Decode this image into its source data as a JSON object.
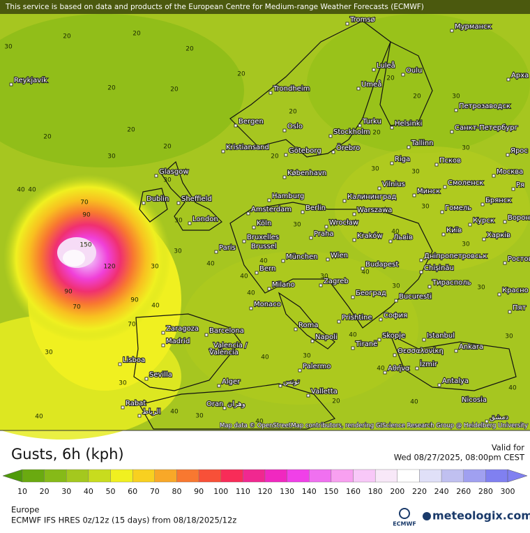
{
  "header": {
    "notice": "This service is based on data and products of the European Centre for Medium-range Weather Forecasts (ECMWF)"
  },
  "map": {
    "attribution": "Map data © OpenStreetMap contributors, rendering GIScience Research Group @ Heidelberg University",
    "cities": [
      "Tromsø",
      "Мурманск",
      "Арха",
      "Reykjavík",
      "Luleå",
      "Oulu",
      "Trondheim",
      "Umeå",
      "Петрозаводск",
      "Bergen",
      "Turku",
      "Helsinki",
      "Санкт-Петербург",
      "Oslo",
      "Stockholm",
      "Kristiansand",
      "Göteborg",
      "Örebro",
      "Tallinn",
      "Ярос",
      "Riga",
      "Псков",
      "Glasgow",
      "København",
      "Москва",
      "Vilnius",
      "Смоленск",
      "Минск",
      "Ря",
      "Hamburg",
      "Калининград",
      "Dublin",
      "Sheffield",
      "Брянск",
      "Amsterdam",
      "Berlin",
      "Warszawa",
      "Гомель",
      "Курск",
      "Ворон",
      "London",
      "Köln",
      "Wrocław",
      "Київ",
      "Харків",
      "Bruxelles",
      "Brussel",
      "Praha",
      "Kraków",
      "Львів",
      "Paris",
      "München",
      "Wien",
      "Дніпропетровськ",
      "Ростов",
      "Budapest",
      "Chișinău",
      "Bern",
      "Тирасполь",
      "Milano",
      "Zagreb",
      "Красно",
      "Београд",
      "Bucuresti",
      "Monaco",
      "Пят",
      "Prishtine",
      "София",
      "Roma",
      "Zaragoza",
      "Barcelona",
      "Madrid",
      "Napoli",
      "Skopje",
      "Istanbul",
      "Valencia /",
      "València",
      "Tiranë",
      "Θεσσαλονίκη",
      "Lisboa",
      "Ankara",
      "Αθήνα",
      "İzmir",
      "Sevilla",
      "Palermo",
      "Alger",
      "تونس",
      "Antalya",
      "Valletta",
      "Rabat",
      "الرباط",
      "Oran",
      "وهران",
      "Nicosia",
      "دمشق"
    ],
    "contour_labels": [
      "30",
      "20",
      "20",
      "20",
      "20",
      "20",
      "20",
      "20",
      "20",
      "20",
      "30",
      "40",
      "40",
      "70",
      "90",
      "150",
      "120",
      "90",
      "90",
      "70",
      "70",
      "30",
      "30",
      "40",
      "40",
      "30",
      "40",
      "30",
      "30",
      "30",
      "20",
      "20",
      "20",
      "20",
      "30",
      "30",
      "30",
      "40",
      "30",
      "30",
      "40",
      "40",
      "30",
      "40",
      "30",
      "40",
      "40",
      "30",
      "40",
      "40",
      "40",
      "20",
      "30",
      "30",
      "30",
      "30",
      "20",
      "30",
      "40",
      "40",
      "30",
      "40"
    ]
  },
  "legend": {
    "title": "Gusts, 6h (kph)",
    "valid_label": "Valid for",
    "valid_time": "Wed 08/27/2025, 08:00pm CEST",
    "ticks": [
      10,
      20,
      30,
      40,
      50,
      60,
      70,
      80,
      90,
      100,
      110,
      120,
      130,
      140,
      150,
      160,
      180,
      200,
      220,
      240,
      260,
      280,
      300
    ],
    "colors": [
      "#4f9a0a",
      "#6aaa10",
      "#86ba18",
      "#a4c81e",
      "#c8dc1e",
      "#f0f020",
      "#f8d020",
      "#f8a828",
      "#f87830",
      "#f85038",
      "#f82c58",
      "#f02890",
      "#f028c0",
      "#f040e8",
      "#f070f0",
      "#f8a0f0",
      "#f8c8f8",
      "#f8e8f8",
      "#ffffff",
      "#e0e0f8",
      "#c0c0f0",
      "#a0a0f0",
      "#8080f0"
    ]
  },
  "footer": {
    "region": "Europe",
    "model": "ECMWF IFS HRES 0z/12z (15 days) from  08/18/2025/12z",
    "ecmwf_logo": "ECMWF",
    "brand": "meteologix.com"
  }
}
